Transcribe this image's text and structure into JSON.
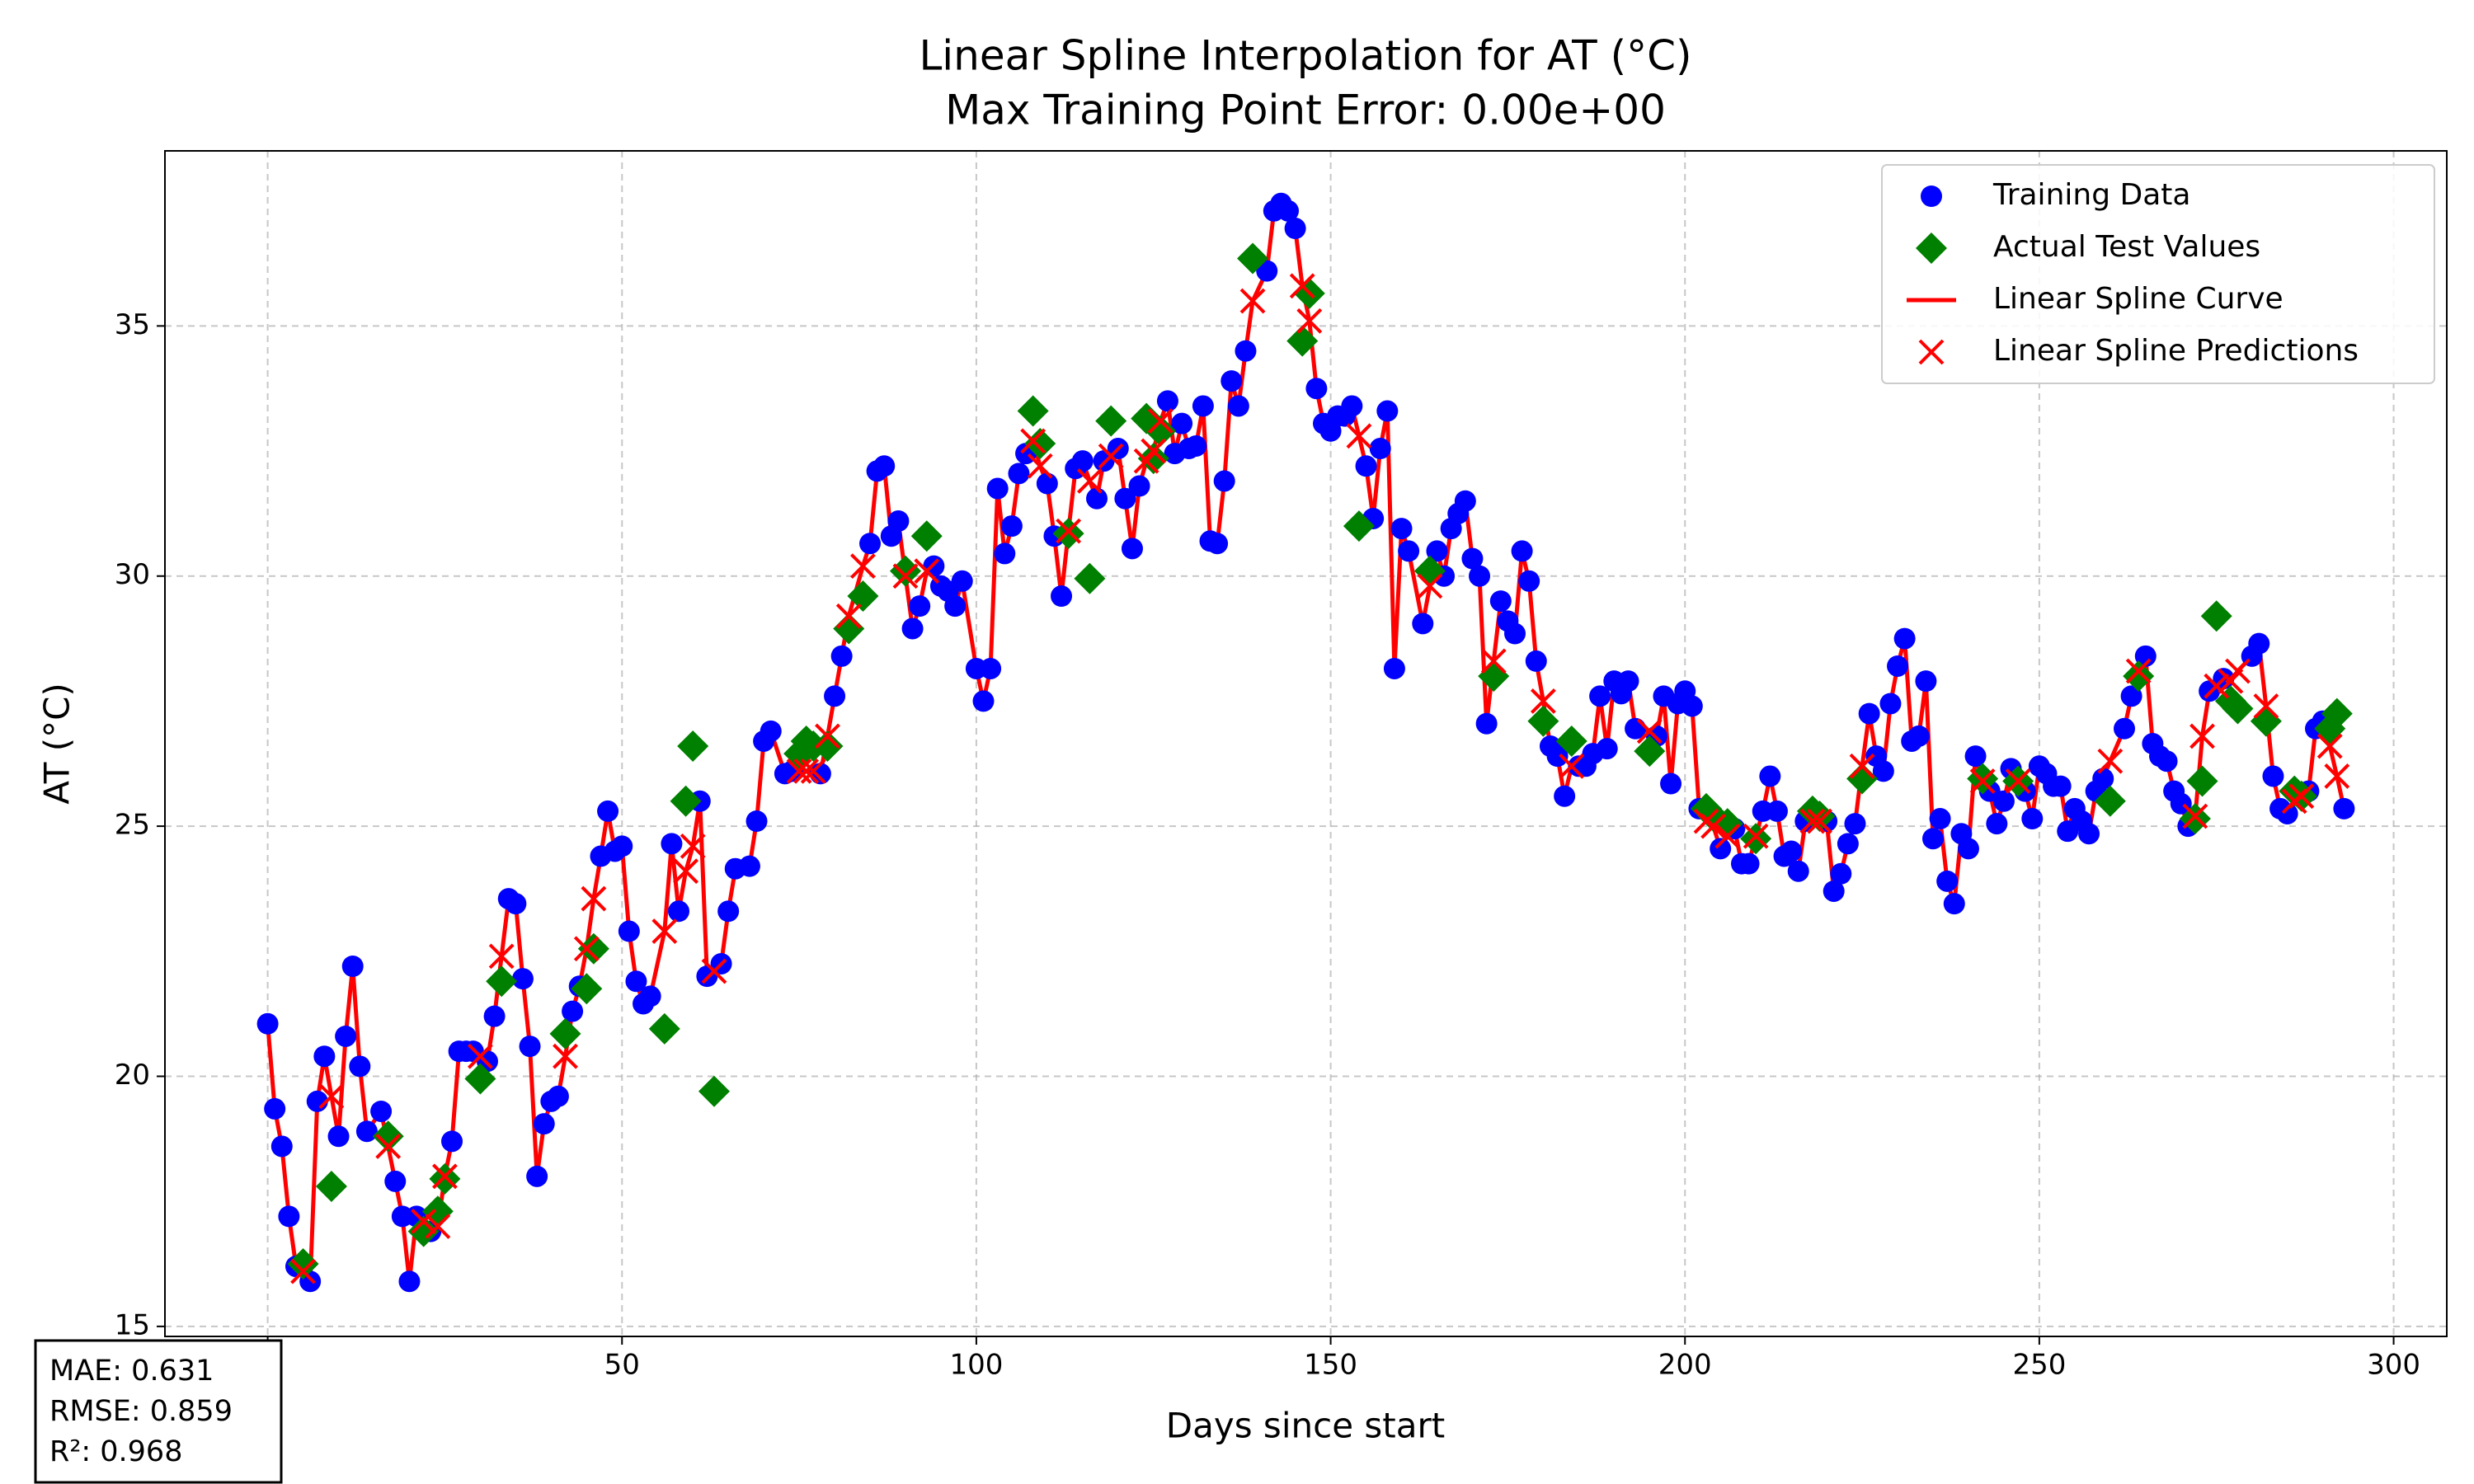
{
  "chart_data": {
    "type": "scatter",
    "title": "Linear Spline Interpolation for AT (°C)",
    "subtitle": "Max Training Point Error: 0.00e+00",
    "xlabel": "Days since start",
    "ylabel": "AT (°C)",
    "xlim": [
      -14.5,
      307.5
    ],
    "ylim": [
      14.8,
      38.5
    ],
    "xticks": [
      0,
      50,
      100,
      150,
      200,
      250,
      300
    ],
    "yticks": [
      15,
      20,
      25,
      30,
      35
    ],
    "grid": true,
    "legend": "upper right",
    "stats": [
      "MAE: 0.631",
      "RMSE: 0.859",
      "R²: 0.968"
    ],
    "series": [
      {
        "name": "Training Data",
        "color": "#0000ff",
        "marker": "circle",
        "x": [
          0,
          1,
          2,
          3,
          4,
          6,
          7,
          8,
          10,
          11,
          12,
          13,
          14,
          16,
          18,
          19,
          20,
          21,
          23,
          26,
          27,
          28,
          29,
          31,
          32,
          34,
          35,
          36,
          37,
          38,
          39,
          40,
          41,
          43,
          44,
          47,
          48,
          49,
          50,
          51,
          52,
          53,
          54,
          57,
          58,
          61,
          62,
          64,
          65,
          66,
          68,
          69,
          70,
          71,
          73,
          74,
          78,
          80,
          81,
          85,
          86,
          87,
          88,
          89,
          91,
          92,
          94,
          95,
          96,
          97,
          98,
          100,
          101,
          102,
          103,
          104,
          105,
          106,
          107,
          110,
          111,
          112,
          114,
          115,
          117,
          118,
          120,
          121,
          122,
          123,
          127,
          128,
          129,
          130,
          131,
          132,
          133,
          134,
          135,
          136,
          137,
          138,
          141,
          142,
          143,
          144,
          145,
          148,
          149,
          150,
          151,
          152,
          153,
          155,
          156,
          157,
          158,
          159,
          160,
          161,
          163,
          165,
          166,
          167,
          168,
          169,
          170,
          171,
          172,
          174,
          175,
          176,
          177,
          178,
          179,
          181,
          182,
          183,
          185,
          186,
          187,
          188,
          189,
          190,
          191,
          192,
          193,
          196,
          197,
          198,
          199,
          200,
          201,
          202,
          205,
          207,
          208,
          209,
          211,
          212,
          213,
          214,
          215,
          216,
          217,
          220,
          221,
          222,
          223,
          224,
          226,
          227,
          228,
          229,
          230,
          231,
          232,
          233,
          234,
          235,
          236,
          237,
          238,
          239,
          240,
          241,
          243,
          244,
          245,
          246,
          248,
          249,
          250,
          251,
          252,
          253,
          254,
          255,
          256,
          257,
          258,
          259,
          262,
          263,
          265,
          266,
          267,
          268,
          269,
          270,
          271,
          274,
          276,
          280,
          281,
          283,
          284,
          285,
          288,
          289,
          290,
          293
        ],
        "values": [
          21.05,
          19.35,
          18.6,
          17.2,
          16.2,
          15.9,
          19.5,
          20.4,
          18.8,
          20.8,
          22.2,
          20.2,
          18.9,
          19.3,
          17.9,
          17.2,
          15.9,
          17.2,
          16.9,
          18.7,
          20.5,
          20.5,
          20.5,
          20.3,
          21.2,
          23.55,
          23.45,
          21.95,
          20.6,
          18.0,
          19.05,
          19.5,
          19.6,
          21.3,
          21.8,
          24.4,
          25.3,
          24.5,
          24.6,
          22.9,
          21.9,
          21.45,
          21.6,
          24.65,
          23.3,
          25.5,
          22.0,
          22.25,
          23.3,
          24.15,
          24.2,
          25.1,
          26.7,
          26.9,
          26.05,
          26.1,
          26.05,
          27.6,
          28.4,
          30.65,
          32.1,
          32.2,
          30.8,
          31.1,
          28.95,
          29.4,
          30.2,
          29.8,
          29.7,
          29.4,
          29.9,
          28.15,
          27.5,
          28.15,
          31.75,
          30.45,
          31.0,
          32.05,
          32.45,
          31.85,
          30.8,
          29.6,
          32.15,
          32.3,
          31.55,
          32.3,
          32.55,
          31.55,
          30.55,
          31.8,
          33.5,
          32.45,
          33.05,
          32.55,
          32.6,
          33.4,
          30.7,
          30.65,
          31.9,
          33.9,
          33.4,
          34.5,
          36.1,
          37.3,
          37.45,
          37.3,
          36.95,
          33.75,
          33.05,
          32.9,
          33.2,
          33.2,
          33.4,
          32.2,
          31.15,
          32.55,
          33.3,
          28.15,
          30.95,
          30.5,
          29.05,
          30.5,
          30.0,
          30.95,
          31.25,
          31.5,
          30.35,
          30.0,
          27.05,
          29.5,
          29.1,
          28.85,
          30.5,
          29.9,
          28.3,
          26.6,
          26.4,
          25.6,
          26.2,
          26.2,
          26.45,
          27.6,
          26.55,
          27.9,
          27.65,
          27.9,
          26.95,
          26.8,
          27.6,
          25.85,
          27.45,
          27.7,
          27.4,
          25.35,
          24.55,
          24.95,
          24.25,
          24.25,
          25.3,
          26.0,
          25.3,
          24.4,
          24.5,
          24.1,
          25.1,
          25.1,
          23.7,
          24.05,
          24.65,
          25.05,
          27.25,
          26.4,
          26.1,
          27.45,
          28.2,
          28.75,
          26.7,
          26.8,
          27.9,
          24.75,
          25.15,
          23.9,
          23.45,
          24.85,
          24.55,
          26.4,
          25.7,
          25.05,
          25.5,
          26.15,
          25.7,
          25.15,
          26.2,
          26.05,
          25.8,
          25.8,
          24.9,
          25.35,
          25.1,
          24.85,
          25.7,
          25.95,
          26.95,
          27.6,
          28.4,
          26.65,
          26.4,
          26.3,
          25.7,
          25.45,
          25.0,
          27.7,
          27.95,
          28.4,
          28.65,
          26.0,
          25.35,
          25.25,
          25.7,
          26.95,
          27.1,
          25.35
        ]
      },
      {
        "name": "Actual Test Values",
        "color": "#008000",
        "marker": "diamond",
        "x": [
          5,
          9,
          17,
          22,
          24,
          25,
          30,
          33,
          42,
          45,
          46,
          56,
          59,
          60,
          63,
          75,
          76,
          77,
          79,
          82,
          84,
          90,
          93,
          108,
          109,
          113,
          116,
          119,
          124,
          125,
          126,
          139,
          146,
          147,
          154,
          164,
          173,
          180,
          184,
          195,
          203,
          204,
          206,
          210,
          218,
          219,
          225,
          242,
          247,
          260,
          264,
          272,
          273,
          275,
          277,
          278,
          282,
          286,
          287,
          291,
          292
        ],
        "values": [
          16.25,
          17.8,
          18.8,
          16.9,
          17.3,
          17.95,
          19.95,
          21.9,
          20.85,
          21.75,
          22.55,
          20.95,
          25.5,
          26.6,
          19.7,
          26.45,
          26.7,
          26.6,
          26.6,
          28.95,
          29.6,
          30.1,
          30.8,
          33.3,
          32.65,
          30.85,
          29.95,
          33.1,
          33.15,
          32.35,
          32.9,
          36.35,
          34.7,
          35.65,
          31.0,
          30.1,
          28.0,
          27.1,
          26.7,
          26.5,
          25.35,
          25.2,
          25.05,
          24.75,
          25.3,
          25.2,
          25.95,
          25.95,
          25.9,
          25.5,
          28.0,
          25.15,
          25.9,
          29.2,
          27.5,
          27.35,
          27.1,
          25.7,
          25.6,
          26.95,
          27.25
        ]
      },
      {
        "name": "Linear Spline Curve",
        "color": "#ff0000",
        "marker": "line"
      },
      {
        "name": "Linear Spline Predictions",
        "color": "#ff0000",
        "marker": "x",
        "x": [
          5,
          9,
          17,
          22,
          24,
          25,
          30,
          33,
          42,
          45,
          46,
          56,
          59,
          60,
          63,
          75,
          76,
          77,
          79,
          82,
          84,
          90,
          93,
          108,
          109,
          113,
          116,
          119,
          124,
          125,
          126,
          139,
          146,
          147,
          154,
          164,
          173,
          180,
          184,
          195,
          203,
          204,
          206,
          210,
          218,
          219,
          225,
          242,
          247,
          260,
          264,
          272,
          273,
          275,
          277,
          278,
          282,
          286,
          287,
          291,
          292
        ],
        "values": [
          16.1,
          19.6,
          18.6,
          17.1,
          17.0,
          18.0,
          20.4,
          22.4,
          20.4,
          22.55,
          23.55,
          22.9,
          24.1,
          24.6,
          22.1,
          26.1,
          26.1,
          26.1,
          26.8,
          29.2,
          30.2,
          30.0,
          30.1,
          32.7,
          32.2,
          30.9,
          31.9,
          32.4,
          32.3,
          32.5,
          33.1,
          35.5,
          35.8,
          35.1,
          32.8,
          29.8,
          28.3,
          27.5,
          26.2,
          26.9,
          25.1,
          25.0,
          24.8,
          24.8,
          25.1,
          25.1,
          26.2,
          25.9,
          25.9,
          26.3,
          28.1,
          25.2,
          26.8,
          27.8,
          27.9,
          28.1,
          27.4,
          25.5,
          25.6,
          26.6,
          26.0
        ]
      }
    ]
  }
}
